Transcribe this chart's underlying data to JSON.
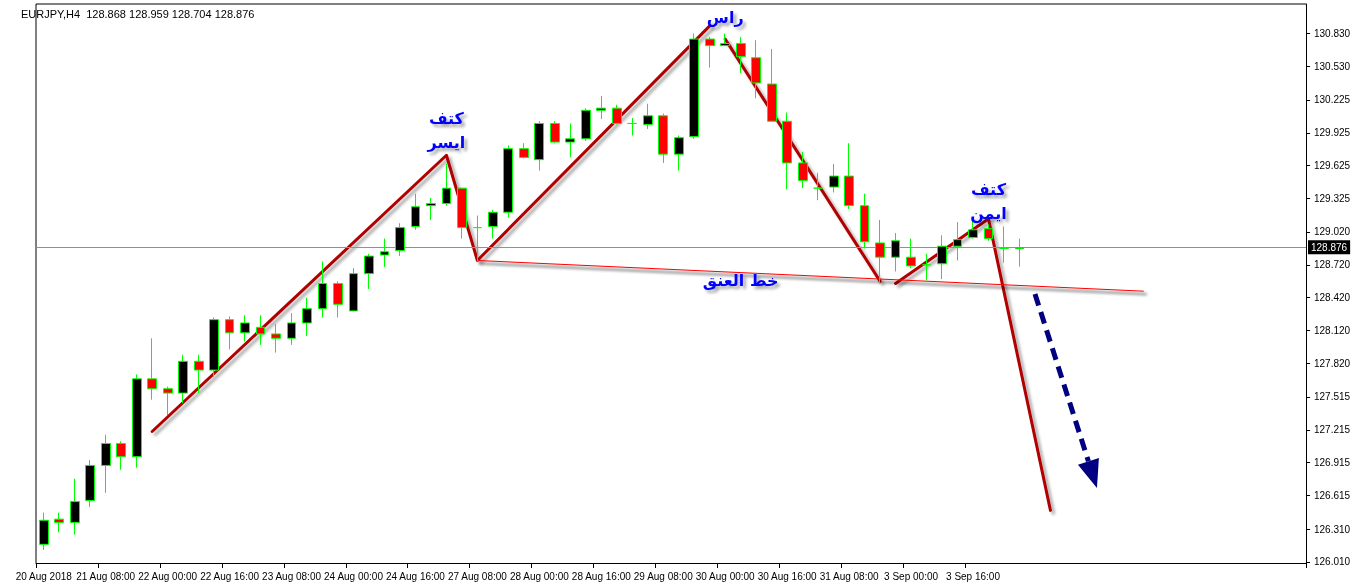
{
  "chart_data": {
    "type": "candlestick",
    "title": "EURJPY,H4  128.868 128.959 128.704 128.876",
    "categories": [
      "20 Aug 2018",
      null,
      null,
      null,
      "21 Aug 08:00",
      null,
      null,
      null,
      "22 Aug 00:00",
      null,
      null,
      null,
      "22 Aug 16:00",
      null,
      null,
      null,
      "23 Aug 08:00",
      null,
      null,
      null,
      "24 Aug 00:00",
      null,
      null,
      null,
      "24 Aug 16:00",
      null,
      null,
      null,
      "27 Aug 08:00",
      null,
      null,
      null,
      "28 Aug 00:00",
      null,
      null,
      null,
      "28 Aug 16:00",
      null,
      null,
      null,
      "29 Aug 08:00",
      null,
      null,
      null,
      "30 Aug 00:00",
      null,
      null,
      null,
      "30 Aug 16:00",
      null,
      null,
      null,
      "31 Aug 08:00",
      null,
      null,
      null,
      "3 Sep 00:00",
      null,
      null,
      null,
      "3 Sep 16:00",
      null,
      null,
      null,
      null,
      null,
      null,
      null,
      null,
      null,
      null,
      null,
      null,
      null,
      null,
      null,
      null,
      null,
      null,
      null,
      null,
      null
    ],
    "ohlc": [
      [
        126.17,
        126.46,
        126.12,
        126.39
      ],
      [
        126.4,
        126.46,
        126.28,
        126.37
      ],
      [
        126.37,
        126.77,
        126.26,
        126.56
      ],
      [
        126.57,
        126.94,
        126.51,
        126.89
      ],
      [
        126.89,
        127.17,
        126.64,
        127.09
      ],
      [
        127.09,
        127.11,
        126.85,
        126.97
      ],
      [
        126.97,
        127.72,
        126.87,
        127.68
      ],
      [
        127.68,
        128.05,
        127.49,
        127.59
      ],
      [
        127.59,
        127.61,
        127.35,
        127.55
      ],
      [
        127.55,
        127.9,
        127.46,
        127.84
      ],
      [
        127.84,
        127.9,
        127.55,
        127.76
      ],
      [
        127.76,
        128.24,
        127.7,
        128.22
      ],
      [
        128.22,
        128.25,
        127.95,
        128.1
      ],
      [
        128.1,
        128.26,
        128.02,
        128.19
      ],
      [
        128.15,
        128.26,
        127.99,
        128.09
      ],
      [
        128.09,
        128.18,
        127.92,
        128.05
      ],
      [
        128.05,
        128.28,
        127.99,
        128.19
      ],
      [
        128.19,
        128.42,
        128.07,
        128.32
      ],
      [
        128.32,
        128.75,
        128.24,
        128.55
      ],
      [
        128.55,
        128.57,
        128.24,
        128.36
      ],
      [
        128.3,
        128.69,
        128.3,
        128.64
      ],
      [
        128.64,
        128.82,
        128.5,
        128.8
      ],
      [
        128.81,
        128.96,
        128.7,
        128.84
      ],
      [
        128.85,
        129.1,
        128.8,
        129.06
      ],
      [
        129.07,
        129.37,
        129.04,
        129.25
      ],
      [
        129.26,
        129.33,
        129.13,
        129.28
      ],
      [
        129.28,
        129.64,
        129.26,
        129.42
      ],
      [
        129.42,
        129.42,
        128.96,
        129.06
      ],
      [
        129.06,
        129.17,
        128.75,
        129.06
      ],
      [
        129.07,
        129.22,
        128.96,
        129.2
      ],
      [
        129.2,
        129.81,
        129.15,
        129.78
      ],
      [
        129.78,
        129.83,
        129.69,
        129.7
      ],
      [
        129.68,
        130.03,
        129.58,
        130.01
      ],
      [
        130.01,
        130.03,
        129.83,
        129.84
      ],
      [
        129.84,
        130.01,
        129.7,
        129.87
      ],
      [
        129.87,
        130.15,
        129.85,
        130.13
      ],
      [
        130.13,
        130.26,
        130.05,
        130.15
      ],
      [
        130.15,
        130.18,
        130.0,
        130.01
      ],
      [
        130.01,
        130.06,
        129.9,
        130.01
      ],
      [
        130.0,
        130.19,
        129.96,
        130.08
      ],
      [
        130.08,
        130.1,
        129.65,
        129.73
      ],
      [
        129.73,
        129.9,
        129.58,
        129.88
      ],
      [
        129.89,
        130.83,
        129.87,
        130.78
      ],
      [
        130.78,
        130.8,
        130.52,
        130.72
      ],
      [
        130.72,
        130.83,
        130.72,
        130.74
      ],
      [
        130.74,
        130.8,
        130.47,
        130.62
      ],
      [
        130.61,
        130.77,
        130.24,
        130.38
      ],
      [
        130.37,
        130.69,
        130.03,
        130.03
      ],
      [
        130.03,
        130.11,
        129.41,
        129.65
      ],
      [
        129.65,
        129.75,
        129.42,
        129.49
      ],
      [
        129.42,
        129.56,
        129.31,
        129.42
      ],
      [
        129.43,
        129.64,
        129.38,
        129.53
      ],
      [
        129.53,
        129.83,
        129.23,
        129.26
      ],
      [
        129.26,
        129.37,
        128.87,
        128.93
      ],
      [
        128.92,
        129.13,
        128.55,
        128.79
      ],
      [
        128.79,
        129.01,
        128.66,
        128.94
      ],
      [
        128.79,
        128.96,
        128.69,
        128.71
      ],
      [
        128.72,
        128.82,
        128.58,
        128.72
      ],
      [
        128.73,
        128.99,
        128.59,
        128.89
      ],
      [
        128.89,
        129.11,
        128.76,
        128.95
      ],
      [
        128.97,
        129.13,
        128.96,
        129.04
      ],
      [
        129.05,
        129.09,
        128.94,
        128.96
      ],
      [
        128.87,
        129.07,
        128.74,
        128.87
      ],
      [
        128.868,
        128.959,
        128.704,
        128.876
      ],
      null,
      null,
      null,
      null,
      null,
      null,
      null,
      null,
      null,
      null,
      null,
      null,
      null,
      null,
      null,
      null,
      null,
      null
    ],
    "colors": [
      "#000000",
      "#ff0000",
      "#000000",
      "#000000",
      "#000000",
      "#ff0000",
      "#000000",
      "#ff0000",
      "#ff0000",
      "#000000",
      "#ff0000",
      "#000000",
      "#ff0000",
      "#000000",
      "#ff0000",
      "#ff0000",
      "#000000",
      "#000000",
      "#000000",
      "#ff0000",
      "#000000",
      "#000000",
      "#000000",
      "#000000",
      "#000000",
      "#000000",
      "#000000",
      "#ff0000",
      "#00ff00",
      "#000000",
      "#000000",
      "#ff0000",
      "#000000",
      "#ff0000",
      "#000000",
      "#000000",
      "#000000",
      "#ff0000",
      "#00ff00",
      "#000000",
      "#ff0000",
      "#000000",
      "#000000",
      "#ff0000",
      "#000000",
      "#ff0000",
      "#ff0000",
      "#ff0000",
      "#ff0000",
      "#ff0000",
      "#00ff00",
      "#000000",
      "#ff0000",
      "#ff0000",
      "#ff0000",
      "#000000",
      "#ff0000",
      "#00ff00",
      "#000000",
      "#000000",
      "#000000",
      "#ff0000",
      "#00ff00",
      "#000000",
      null,
      null,
      null,
      null,
      null,
      null,
      null,
      null,
      null,
      null,
      null,
      null,
      null,
      null,
      null,
      null,
      null,
      null
    ],
    "series": [
      {
        "type": "line",
        "color": "#b00000",
        "values": [
          null,
          null,
          null,
          null,
          null,
          null,
          null,
          127.2,
          null,
          null,
          null,
          null,
          null,
          null,
          null,
          null,
          null,
          null,
          null,
          null,
          null,
          null,
          null,
          null,
          null,
          null,
          129.72,
          null,
          128.76,
          null,
          null,
          null,
          null,
          null,
          null,
          null,
          null,
          null,
          null,
          null,
          null,
          null,
          null,
          130.9,
          null,
          null,
          null,
          null,
          null,
          null,
          null,
          null,
          null,
          null,
          null,
          null,
          null,
          null,
          null,
          null,
          null,
          null,
          null,
          null,
          null,
          null,
          null,
          null,
          null,
          null,
          null,
          null,
          null,
          null,
          null,
          null,
          null,
          null,
          null,
          null,
          null,
          null
        ]
      },
      {
        "type": "line",
        "color": "#b00000",
        "values": [
          null,
          null,
          null,
          null,
          null,
          null,
          null,
          null,
          null,
          null,
          null,
          null,
          null,
          null,
          null,
          null,
          null,
          null,
          null,
          null,
          null,
          null,
          null,
          null,
          null,
          null,
          null,
          null,
          null,
          null,
          null,
          null,
          null,
          null,
          null,
          null,
          null,
          null,
          null,
          null,
          null,
          null,
          null,
          null,
          130.78,
          null,
          null,
          null,
          null,
          null,
          null,
          null,
          null,
          null,
          128.57,
          null,
          null,
          null,
          null,
          null,
          null,
          null,
          null,
          null,
          null,
          null,
          null,
          null,
          null,
          null,
          null,
          null,
          null,
          null,
          null,
          null,
          null,
          null,
          null,
          null,
          null,
          null
        ]
      },
      {
        "type": "line",
        "color": "#b00000",
        "values": [
          null,
          null,
          null,
          null,
          null,
          null,
          null,
          null,
          null,
          null,
          null,
          null,
          null,
          null,
          null,
          null,
          null,
          null,
          null,
          null,
          null,
          null,
          null,
          null,
          null,
          null,
          null,
          null,
          null,
          null,
          null,
          null,
          null,
          null,
          null,
          null,
          null,
          null,
          null,
          null,
          null,
          null,
          null,
          null,
          null,
          null,
          null,
          null,
          null,
          null,
          null,
          null,
          null,
          null,
          null,
          128.55,
          null,
          null,
          null,
          null,
          null,
          129.14,
          null,
          null,
          null,
          126.48,
          null,
          null,
          null,
          null,
          null,
          null,
          null,
          null,
          null,
          null,
          null,
          null,
          null,
          null,
          null,
          null
        ]
      },
      {
        "type": "line",
        "color": "#ff0000",
        "values": [
          null,
          null,
          null,
          null,
          null,
          null,
          null,
          null,
          null,
          null,
          null,
          null,
          null,
          null,
          null,
          null,
          null,
          null,
          null,
          null,
          null,
          null,
          null,
          null,
          null,
          null,
          null,
          null,
          128.76,
          null,
          null,
          null,
          null,
          null,
          null,
          null,
          null,
          null,
          null,
          null,
          null,
          null,
          null,
          null,
          null,
          null,
          null,
          null,
          null,
          null,
          null,
          null,
          null,
          null,
          null,
          null,
          null,
          null,
          null,
          null,
          null,
          null,
          null,
          null,
          null,
          null,
          null,
          null,
          null,
          null,
          null,
          128.48,
          null,
          null,
          null,
          null,
          null,
          null,
          null,
          null,
          null,
          null
        ]
      }
    ],
    "ylim": [
      126.0,
      131.1
    ],
    "yticks": [
      {
        "value": 126.01,
        "label": "126.010"
      },
      {
        "value": 126.31,
        "label": "126.310"
      },
      {
        "value": 126.615,
        "label": "126.615"
      },
      {
        "value": 126.915,
        "label": "126.915"
      },
      {
        "value": 127.215,
        "label": "127.215"
      },
      {
        "value": 127.515,
        "label": "127.515"
      },
      {
        "value": 127.82,
        "label": "127.820"
      },
      {
        "value": 128.12,
        "label": "128.120"
      },
      {
        "value": 128.42,
        "label": "128.420"
      },
      {
        "value": 128.72,
        "label": "128.720"
      },
      {
        "value": 129.02,
        "label": "129.020"
      },
      {
        "value": 129.325,
        "label": "129.325"
      },
      {
        "value": 129.625,
        "label": "129.625"
      },
      {
        "value": 129.925,
        "label": "129.925"
      },
      {
        "value": 130.225,
        "label": "130.225"
      },
      {
        "value": 130.53,
        "label": "130.530"
      },
      {
        "value": 130.83,
        "label": "130.830"
      }
    ],
    "ref_lines": [
      {
        "axis": "y",
        "value": 128.876,
        "label": "128.876",
        "color": "#8494a6"
      }
    ],
    "annotations": [
      "كتف\nايسر",
      "راس",
      "كتف\nايمن",
      "خط العنق"
    ],
    "grid": false,
    "line_style": "solid",
    "marker": "none"
  }
}
